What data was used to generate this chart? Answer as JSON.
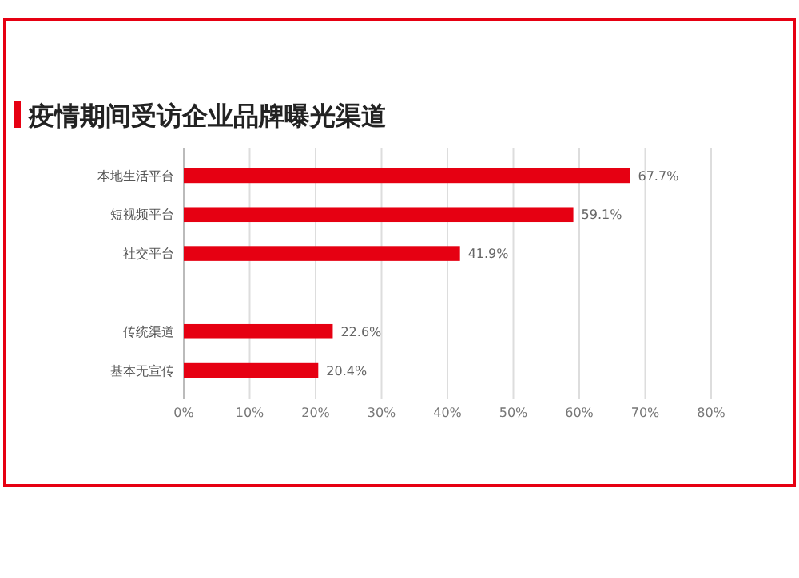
{
  "chart_data": {
    "type": "bar",
    "orientation": "horizontal",
    "title": "疫情期间受访企业品牌曝光渠道",
    "categories": [
      "本地生活平台",
      "短视频平台",
      "社交平台",
      null,
      "传统渠道",
      "基本无宣传"
    ],
    "values": [
      67.7,
      59.1,
      41.9,
      null,
      22.6,
      20.4
    ],
    "value_labels": [
      "67.7%",
      "59.1%",
      "41.9%",
      null,
      "22.6%",
      "20.4%"
    ],
    "color": "#e60012",
    "xlim": [
      0,
      80
    ],
    "xticks": [
      {
        "value": 0,
        "label": "0%"
      },
      {
        "value": 10,
        "label": "10%"
      },
      {
        "value": 20,
        "label": "20%"
      },
      {
        "value": 30,
        "label": "30%"
      },
      {
        "value": 40,
        "label": "40%"
      },
      {
        "value": 50,
        "label": "50%"
      },
      {
        "value": 60,
        "label": "60%"
      },
      {
        "value": 70,
        "label": "70%"
      },
      {
        "value": 80,
        "label": "80%"
      }
    ],
    "grid": "x"
  }
}
